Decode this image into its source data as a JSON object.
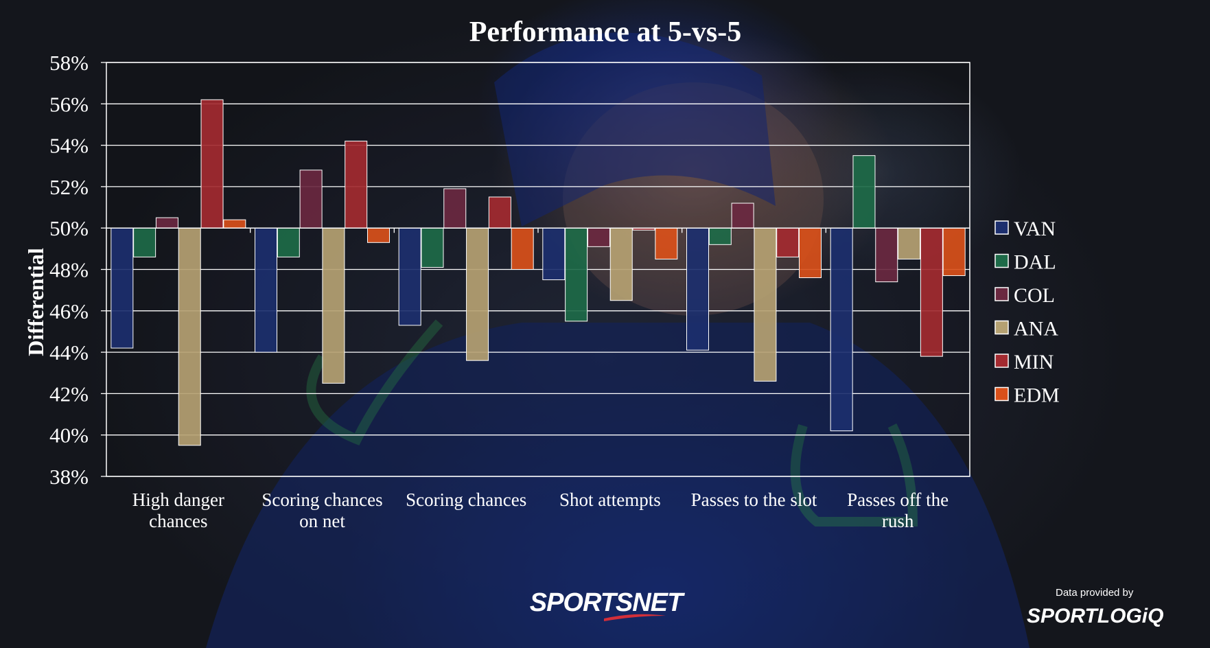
{
  "chart_data": {
    "type": "bar",
    "title": "Performance at 5-vs-5",
    "xlabel": "",
    "ylabel": "Differential",
    "baseline": 50,
    "ylim": [
      38,
      58
    ],
    "yticks": [
      38,
      40,
      42,
      44,
      46,
      48,
      50,
      52,
      54,
      56,
      58
    ],
    "ytick_labels": [
      "38%",
      "40%",
      "42%",
      "44%",
      "46%",
      "48%",
      "50%",
      "52%",
      "54%",
      "56%",
      "58%"
    ],
    "grid": true,
    "legend_position": "right",
    "categories": [
      [
        "High danger",
        "chances"
      ],
      [
        "Scoring chances",
        "on net"
      ],
      [
        "Scoring chances"
      ],
      [
        "Shot attempts"
      ],
      [
        "Passes to the slot"
      ],
      [
        "Passes off the",
        "rush"
      ]
    ],
    "series": [
      {
        "name": "VAN",
        "color": "#1c2f6e",
        "values": [
          44.2,
          44.0,
          45.3,
          47.5,
          44.1,
          40.2
        ]
      },
      {
        "name": "DAL",
        "color": "#1d6a48",
        "values": [
          48.6,
          48.6,
          48.1,
          45.5,
          49.2,
          53.5
        ]
      },
      {
        "name": "COL",
        "color": "#6a2840",
        "values": [
          50.5,
          52.8,
          51.9,
          49.1,
          51.2,
          47.4
        ]
      },
      {
        "name": "ANA",
        "color": "#b5a172",
        "values": [
          39.5,
          42.5,
          43.6,
          46.5,
          42.6,
          48.5
        ]
      },
      {
        "name": "MIN",
        "color": "#a32a30",
        "values": [
          56.2,
          54.2,
          51.5,
          49.9,
          48.6,
          43.8
        ]
      },
      {
        "name": "EDM",
        "color": "#d9501a",
        "values": [
          50.4,
          49.3,
          48.0,
          48.5,
          47.6,
          47.7
        ]
      }
    ]
  },
  "footer": {
    "brand_logo": "SPORTSNET",
    "credit_text": "Data provided by",
    "provider_logo": "SPORTLOGiQ"
  }
}
